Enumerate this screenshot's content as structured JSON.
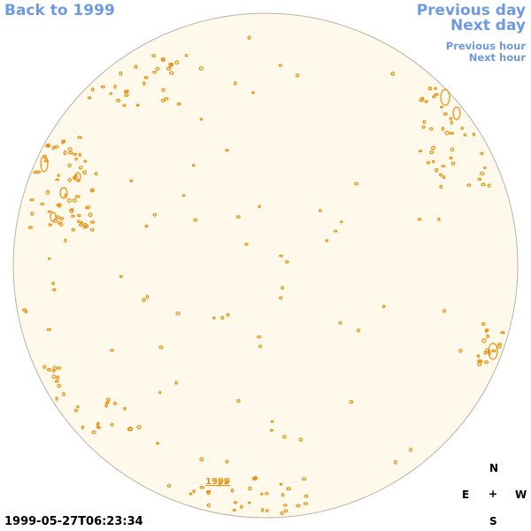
{
  "nav": {
    "back_label": "Back to 1999",
    "previous_day_label": "Previous day",
    "next_day_label": "Next day",
    "previous_hour_label": "Previous hour",
    "next_hour_label": "Next hour"
  },
  "disk": {
    "year_label": "1999",
    "fill_color": "#fff9ec",
    "edge_color": "#b9b3a8",
    "contour_color": "#e8900c"
  },
  "timestamp": "1999-05-27T06:23:34",
  "compass": {
    "north": "N",
    "east": "E",
    "center": "+",
    "west": "W",
    "south": "S"
  }
}
